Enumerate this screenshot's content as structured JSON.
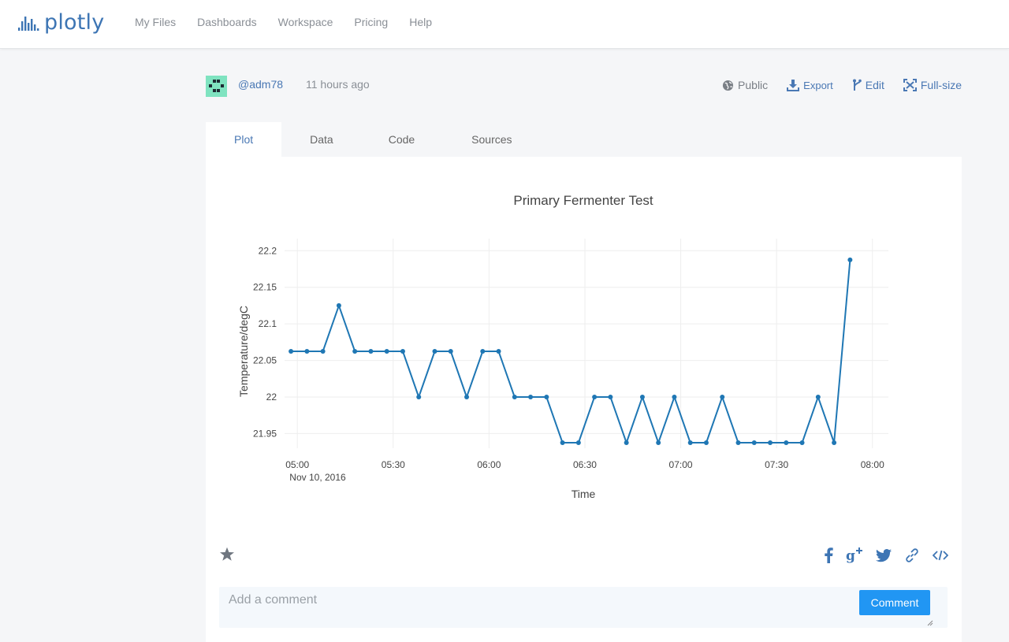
{
  "app": {
    "logo_text": "plotly",
    "brand_color": "#3d75b4",
    "accent_color": "#2196f3"
  },
  "nav": {
    "items": [
      "My Files",
      "Dashboards",
      "Workspace",
      "Pricing",
      "Help"
    ]
  },
  "meta": {
    "username": "@adm78",
    "time_ago": "11 hours ago",
    "actions": {
      "public": "Public",
      "export": "Export",
      "edit": "Edit",
      "fullsize": "Full-size"
    }
  },
  "tabs": [
    "Plot",
    "Data",
    "Code",
    "Sources"
  ],
  "chart_data": {
    "type": "line",
    "title": "Primary Fermenter Test",
    "xlabel": "Time",
    "ylabel": "Temperature/degC",
    "x_date_label": "Nov 10, 2016",
    "x_ticks": [
      {
        "min": 300,
        "label": "05:00"
      },
      {
        "min": 330,
        "label": "05:30"
      },
      {
        "min": 360,
        "label": "06:00"
      },
      {
        "min": 390,
        "label": "06:30"
      },
      {
        "min": 420,
        "label": "07:00"
      },
      {
        "min": 450,
        "label": "07:30"
      },
      {
        "min": 480,
        "label": "08:00"
      }
    ],
    "y_ticks": [
      21.95,
      22,
      22.05,
      22.1,
      22.15,
      22.2
    ],
    "xlim_minutes": [
      296,
      485
    ],
    "ylim": [
      21.93,
      22.21
    ],
    "line_color": "#1f77b4",
    "series": [
      {
        "name": "Temperature",
        "x_minutes": [
          298,
          303,
          308,
          313,
          318,
          323,
          328,
          333,
          338,
          343,
          348,
          353,
          358,
          363,
          368,
          373,
          378,
          383,
          388,
          393,
          398,
          403,
          408,
          413,
          418,
          423,
          428,
          433,
          438,
          443,
          448,
          453,
          458,
          463,
          468,
          473
        ],
        "values": [
          22.0625,
          22.0625,
          22.0625,
          22.125,
          22.0625,
          22.0625,
          22.0625,
          22.0625,
          22.0,
          22.0625,
          22.0625,
          22.0,
          22.0625,
          22.0625,
          22.0,
          22.0,
          22.0,
          21.9375,
          21.9375,
          22.0,
          22.0,
          21.9375,
          22.0,
          21.9375,
          22.0,
          21.9375,
          21.9375,
          22.0,
          21.9375,
          21.9375,
          21.9375,
          21.9375,
          21.9375,
          22.0,
          21.9375,
          22.1875
        ]
      }
    ]
  },
  "comments": {
    "placeholder": "Add a comment",
    "button_label": "Comment"
  }
}
